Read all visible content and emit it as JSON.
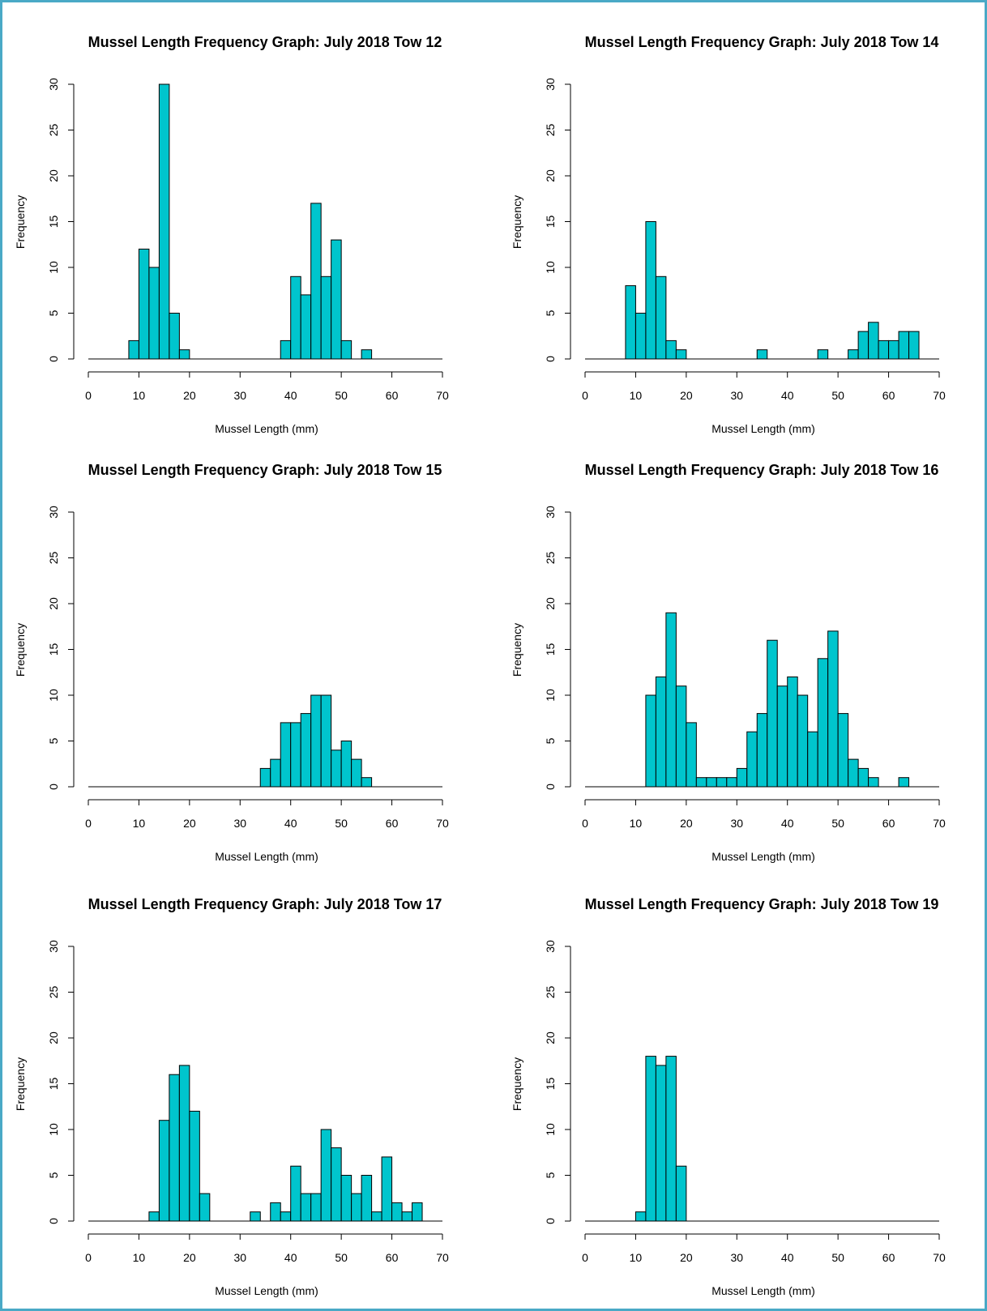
{
  "style": {
    "bar_fill": "#00c5cd",
    "bar_stroke": "#000000",
    "frame_border": "#4aa9c6"
  },
  "chart_data": [
    {
      "type": "bar",
      "title": "Mussel Length Frequency Graph: July 2018 Tow 12",
      "xlabel": "Mussel Length (mm)",
      "ylabel": "Frequency",
      "xlim": [
        0,
        70
      ],
      "ylim": [
        0,
        30
      ],
      "xticks": [
        "0",
        "10",
        "20",
        "30",
        "40",
        "50",
        "60",
        "70"
      ],
      "yticks": [
        "0",
        "5",
        "10",
        "15",
        "20",
        "25",
        "30"
      ],
      "bin_width": 2,
      "bin_start": 8,
      "values": [
        2,
        12,
        10,
        30,
        5,
        1,
        0,
        0,
        0,
        0,
        0,
        0,
        0,
        0,
        0,
        2,
        9,
        7,
        17,
        9,
        13,
        2,
        0,
        1
      ]
    },
    {
      "type": "bar",
      "title": "Mussel Length Frequency Graph: July 2018 Tow 14",
      "xlabel": "Mussel Length (mm)",
      "ylabel": "Frequency",
      "xlim": [
        0,
        70
      ],
      "ylim": [
        0,
        30
      ],
      "xticks": [
        "0",
        "10",
        "20",
        "30",
        "40",
        "50",
        "60",
        "70"
      ],
      "yticks": [
        "0",
        "5",
        "10",
        "15",
        "20",
        "25",
        "30"
      ],
      "bin_width": 2,
      "bin_start": 8,
      "values": [
        8,
        5,
        15,
        9,
        2,
        1,
        0,
        0,
        0,
        0,
        0,
        0,
        0,
        1,
        0,
        0,
        0,
        0,
        0,
        1,
        0,
        0,
        1,
        3,
        4,
        2,
        2,
        3,
        3
      ]
    },
    {
      "type": "bar",
      "title": "Mussel Length Frequency Graph: July 2018 Tow 15",
      "xlabel": "Mussel Length (mm)",
      "ylabel": "Frequency",
      "xlim": [
        0,
        70
      ],
      "ylim": [
        0,
        30
      ],
      "xticks": [
        "0",
        "10",
        "20",
        "30",
        "40",
        "50",
        "60",
        "70"
      ],
      "yticks": [
        "0",
        "5",
        "10",
        "15",
        "20",
        "25",
        "30"
      ],
      "bin_width": 2,
      "bin_start": 34,
      "values": [
        2,
        3,
        7,
        7,
        8,
        10,
        10,
        4,
        5,
        3,
        1
      ]
    },
    {
      "type": "bar",
      "title": "Mussel Length Frequency Graph: July 2018 Tow 16",
      "xlabel": "Mussel Length (mm)",
      "ylabel": "Frequency",
      "xlim": [
        0,
        70
      ],
      "ylim": [
        0,
        30
      ],
      "xticks": [
        "0",
        "10",
        "20",
        "30",
        "40",
        "50",
        "60",
        "70"
      ],
      "yticks": [
        "0",
        "5",
        "10",
        "15",
        "20",
        "25",
        "30"
      ],
      "bin_width": 2,
      "bin_start": 12,
      "values": [
        10,
        12,
        19,
        11,
        7,
        1,
        1,
        1,
        1,
        2,
        6,
        8,
        16,
        11,
        12,
        10,
        6,
        14,
        17,
        8,
        3,
        2,
        1,
        0,
        0,
        1
      ]
    },
    {
      "type": "bar",
      "title": "Mussel Length Frequency Graph: July 2018 Tow 17",
      "xlabel": "Mussel Length (mm)",
      "ylabel": "Frequency",
      "xlim": [
        0,
        70
      ],
      "ylim": [
        0,
        30
      ],
      "xticks": [
        "0",
        "10",
        "20",
        "30",
        "40",
        "50",
        "60",
        "70"
      ],
      "yticks": [
        "0",
        "5",
        "10",
        "15",
        "20",
        "25",
        "30"
      ],
      "bin_width": 2,
      "bin_start": 12,
      "values": [
        1,
        11,
        16,
        17,
        12,
        3,
        0,
        0,
        0,
        0,
        1,
        0,
        2,
        1,
        6,
        3,
        3,
        10,
        8,
        5,
        3,
        5,
        1,
        7,
        2,
        1,
        2
      ]
    },
    {
      "type": "bar",
      "title": "Mussel Length Frequency Graph: July 2018 Tow 19",
      "xlabel": "Mussel Length (mm)",
      "ylabel": "Frequency",
      "xlim": [
        0,
        70
      ],
      "ylim": [
        0,
        30
      ],
      "xticks": [
        "0",
        "10",
        "20",
        "30",
        "40",
        "50",
        "60",
        "70"
      ],
      "yticks": [
        "0",
        "5",
        "10",
        "15",
        "20",
        "25",
        "30"
      ],
      "bin_width": 2,
      "bin_start": 10,
      "values": [
        1,
        18,
        17,
        18,
        6
      ]
    }
  ]
}
